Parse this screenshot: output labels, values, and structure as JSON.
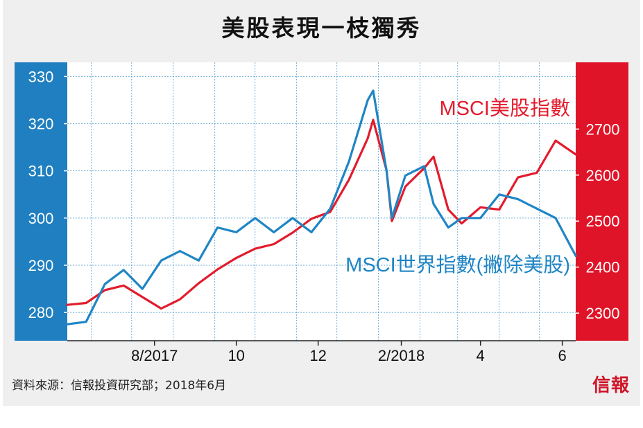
{
  "source_note": "資料來源：信報投資研究部；2018年6月",
  "brand_logo": "信報",
  "colors": {
    "left_band": "#1f7fc0",
    "right_band": "#e01428",
    "us_line": "#e31b2c",
    "world_line": "#1f85c4",
    "grid": "#3a8fc8"
  },
  "chart_data": {
    "type": "line",
    "title": "美股表現一枝獨秀",
    "x_tick_labels": [
      "8/2017",
      "10",
      "12",
      "2/2018",
      "4",
      "6"
    ],
    "left_axis": {
      "ticks": [
        "280",
        "290",
        "300",
        "310",
        "320",
        "330"
      ],
      "ylim": [
        274,
        333
      ]
    },
    "right_axis": {
      "ticks": [
        "2300",
        "2400",
        "2500",
        "2600",
        "2700"
      ],
      "ylim": [
        2240,
        2845
      ]
    },
    "x_range": [
      "2017-06-12",
      "2018-06-26"
    ],
    "series": [
      {
        "name": "MSCI美股指數",
        "axis": "right",
        "x": [
          "2017-06-12",
          "2017-06-26",
          "2017-07-10",
          "2017-07-24",
          "2017-08-07",
          "2017-08-21",
          "2017-09-04",
          "2017-09-18",
          "2017-10-02",
          "2017-10-16",
          "2017-10-30",
          "2017-11-13",
          "2017-11-27",
          "2017-12-11",
          "2017-12-25",
          "2018-01-08",
          "2018-01-22",
          "2018-01-26",
          "2018-02-05",
          "2018-02-09",
          "2018-02-19",
          "2018-03-05",
          "2018-03-12",
          "2018-03-23",
          "2018-04-02",
          "2018-04-16",
          "2018-04-30",
          "2018-05-14",
          "2018-05-28",
          "2018-06-11",
          "2018-06-26"
        ],
        "values": [
          2318,
          2322,
          2350,
          2360,
          2335,
          2310,
          2330,
          2365,
          2395,
          2420,
          2440,
          2450,
          2475,
          2505,
          2520,
          2590,
          2680,
          2720,
          2610,
          2500,
          2575,
          2615,
          2640,
          2525,
          2495,
          2530,
          2525,
          2595,
          2605,
          2675,
          2645
        ]
      },
      {
        "name": "MSCI世界指數(撇除美股)",
        "axis": "left",
        "x": [
          "2017-06-12",
          "2017-06-26",
          "2017-07-10",
          "2017-07-24",
          "2017-08-07",
          "2017-08-21",
          "2017-09-04",
          "2017-09-18",
          "2017-10-02",
          "2017-10-16",
          "2017-10-30",
          "2017-11-13",
          "2017-11-27",
          "2017-12-11",
          "2017-12-25",
          "2018-01-08",
          "2018-01-22",
          "2018-01-26",
          "2018-02-05",
          "2018-02-09",
          "2018-02-19",
          "2018-03-05",
          "2018-03-12",
          "2018-03-23",
          "2018-04-02",
          "2018-04-16",
          "2018-04-30",
          "2018-05-14",
          "2018-05-28",
          "2018-06-11",
          "2018-06-26"
        ],
        "values": [
          277.5,
          278,
          286,
          289,
          285,
          291,
          293,
          291,
          298,
          297,
          300,
          297,
          300,
          297,
          302,
          312,
          325,
          327,
          310,
          300,
          309,
          311,
          303,
          298,
          300,
          300,
          305,
          304,
          302,
          300,
          292
        ]
      }
    ],
    "grid": true,
    "legend": "inline labels near series"
  }
}
